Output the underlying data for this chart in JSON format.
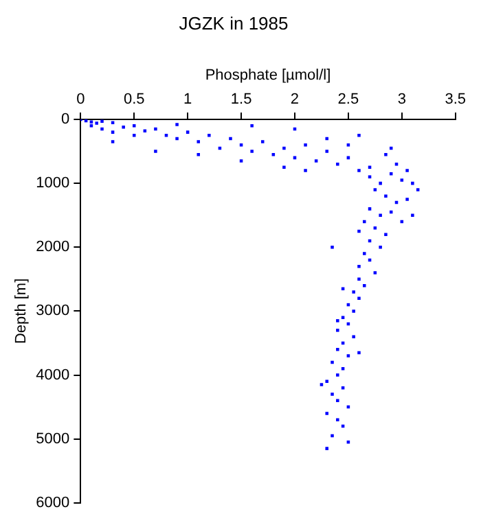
{
  "chart_data": {
    "type": "scatter",
    "title": "JGZK in 1985",
    "xlabel": "Phosphate [µmol/l]",
    "ylabel": "Depth [m]",
    "xlim": [
      0,
      3.5
    ],
    "xticks": [
      0,
      0.5,
      1,
      1.5,
      2,
      2.5,
      3,
      3.5
    ],
    "ylim": [
      6000,
      0
    ],
    "yticks": [
      0,
      1000,
      2000,
      3000,
      4000,
      5000,
      6000
    ],
    "grid": false,
    "legend": false,
    "marker": "square",
    "series": [
      {
        "color": "#0000ff",
        "x": [
          0,
          0.05,
          0.1,
          0.15,
          0.2,
          0.3,
          0.1,
          0.2,
          0.3,
          0.4,
          0.5,
          0.6,
          0.5,
          0.7,
          0.8,
          0.9,
          0.9,
          1.0,
          1.1,
          1.2,
          1.3,
          1.4,
          1.5,
          1.6,
          1.7,
          1.8,
          1.9,
          2.0,
          2.1,
          2.2,
          2.3,
          2.4,
          2.5,
          2.6,
          2.7,
          0.3,
          0.7,
          1.1,
          1.5,
          1.9,
          2.1,
          1.6,
          2.0,
          2.3,
          2.5,
          2.6,
          2.7,
          2.8,
          2.9,
          3.0,
          3.1,
          3.15,
          2.75,
          2.85,
          2.95,
          3.05,
          2.7,
          2.8,
          2.9,
          3.0,
          2.65,
          2.75,
          2.85,
          2.6,
          3.1,
          2.95,
          3.05,
          2.85,
          2.9,
          2.7,
          2.8,
          2.65,
          2.7,
          2.6,
          2.75,
          2.6,
          2.65,
          2.55,
          2.6,
          2.5,
          2.55,
          2.45,
          2.5,
          2.4,
          2.55,
          2.45,
          2.4,
          2.5,
          2.35,
          2.45,
          2.4,
          2.3,
          2.45,
          2.35,
          2.4,
          2.5,
          2.3,
          2.4,
          2.45,
          2.35,
          2.5,
          2.3,
          2.4,
          2.45,
          2.35,
          2.6,
          2.25
        ],
        "values": [
          0,
          20,
          40,
          60,
          30,
          50,
          100,
          150,
          200,
          120,
          100,
          180,
          250,
          150,
          250,
          80,
          300,
          200,
          350,
          250,
          450,
          300,
          400,
          500,
          350,
          550,
          450,
          600,
          400,
          650,
          500,
          700,
          600,
          800,
          750,
          350,
          500,
          550,
          650,
          750,
          800,
          100,
          150,
          300,
          400,
          250,
          900,
          1000,
          850,
          950,
          1000,
          1100,
          1100,
          1200,
          1300,
          1250,
          1400,
          1500,
          1450,
          1600,
          1600,
          1700,
          1800,
          1750,
          1500,
          700,
          800,
          550,
          450,
          1900,
          2000,
          2100,
          2200,
          2300,
          2400,
          2500,
          2600,
          2700,
          2800,
          2900,
          3000,
          3100,
          3200,
          3300,
          3400,
          3500,
          3600,
          3700,
          3800,
          3900,
          4000,
          4100,
          4200,
          4300,
          4400,
          4500,
          4600,
          4700,
          4800,
          4950,
          5050,
          5150,
          3150,
          2650,
          2000,
          3650,
          4150
        ]
      }
    ]
  }
}
